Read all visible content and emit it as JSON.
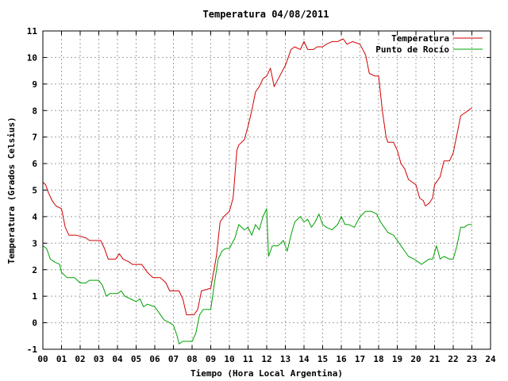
{
  "chart_data": {
    "type": "line",
    "title": "Temperatura 04/08/2011",
    "xlabel": "Tiempo (Hora Local Argentina)",
    "ylabel": "Temperatura (Grados Celsius)",
    "xlim": [
      0,
      24
    ],
    "ylim": [
      -1,
      11
    ],
    "x_ticks": [
      "00",
      "01",
      "02",
      "03",
      "04",
      "05",
      "06",
      "07",
      "08",
      "09",
      "10",
      "11",
      "12",
      "13",
      "14",
      "15",
      "16",
      "17",
      "18",
      "19",
      "20",
      "21",
      "22",
      "23",
      "24"
    ],
    "y_ticks": [
      "-1",
      "0",
      "1",
      "2",
      "3",
      "4",
      "5",
      "6",
      "7",
      "8",
      "9",
      "10",
      "11"
    ],
    "grid": true,
    "legend_position": "top-right",
    "series": [
      {
        "name": "Temperatura",
        "color": "#d00000",
        "points": [
          [
            0,
            5.3
          ],
          [
            0.15,
            5.2
          ],
          [
            0.3,
            4.9
          ],
          [
            0.5,
            4.6
          ],
          [
            0.7,
            4.4
          ],
          [
            1.0,
            4.3
          ],
          [
            1.2,
            3.6
          ],
          [
            1.4,
            3.3
          ],
          [
            1.8,
            3.3
          ],
          [
            2.3,
            3.2
          ],
          [
            2.5,
            3.1
          ],
          [
            3.1,
            3.1
          ],
          [
            3.3,
            2.8
          ],
          [
            3.5,
            2.4
          ],
          [
            3.9,
            2.4
          ],
          [
            4.1,
            2.6
          ],
          [
            4.3,
            2.4
          ],
          [
            4.6,
            2.3
          ],
          [
            4.8,
            2.2
          ],
          [
            5.3,
            2.2
          ],
          [
            5.5,
            2.0
          ],
          [
            5.6,
            1.9
          ],
          [
            5.9,
            1.7
          ],
          [
            6.3,
            1.7
          ],
          [
            6.6,
            1.5
          ],
          [
            6.8,
            1.2
          ],
          [
            7.3,
            1.2
          ],
          [
            7.5,
            0.9
          ],
          [
            7.7,
            0.3
          ],
          [
            8.1,
            0.3
          ],
          [
            8.3,
            0.5
          ],
          [
            8.5,
            1.2
          ],
          [
            9.0,
            1.3
          ],
          [
            9.3,
            2.5
          ],
          [
            9.5,
            3.8
          ],
          [
            9.7,
            4.0
          ],
          [
            10.0,
            4.2
          ],
          [
            10.2,
            4.7
          ],
          [
            10.4,
            6.5
          ],
          [
            10.5,
            6.7
          ],
          [
            10.8,
            6.9
          ],
          [
            11.0,
            7.4
          ],
          [
            11.2,
            8.0
          ],
          [
            11.4,
            8.7
          ],
          [
            11.6,
            8.9
          ],
          [
            11.8,
            9.2
          ],
          [
            12.0,
            9.3
          ],
          [
            12.2,
            9.6
          ],
          [
            12.4,
            8.9
          ],
          [
            12.7,
            9.3
          ],
          [
            13.0,
            9.7
          ],
          [
            13.3,
            10.3
          ],
          [
            13.5,
            10.4
          ],
          [
            13.8,
            10.3
          ],
          [
            14.0,
            10.6
          ],
          [
            14.2,
            10.3
          ],
          [
            14.5,
            10.3
          ],
          [
            14.7,
            10.4
          ],
          [
            15.0,
            10.4
          ],
          [
            15.2,
            10.5
          ],
          [
            15.5,
            10.6
          ],
          [
            15.8,
            10.6
          ],
          [
            16.1,
            10.7
          ],
          [
            16.3,
            10.5
          ],
          [
            16.6,
            10.6
          ],
          [
            17.0,
            10.5
          ],
          [
            17.3,
            10.1
          ],
          [
            17.5,
            9.4
          ],
          [
            17.8,
            9.3
          ],
          [
            18.0,
            9.3
          ],
          [
            18.2,
            8.0
          ],
          [
            18.4,
            7.0
          ],
          [
            18.5,
            6.8
          ],
          [
            18.8,
            6.8
          ],
          [
            19.0,
            6.5
          ],
          [
            19.2,
            6.0
          ],
          [
            19.4,
            5.8
          ],
          [
            19.6,
            5.4
          ],
          [
            19.8,
            5.3
          ],
          [
            20.0,
            5.2
          ],
          [
            20.2,
            4.7
          ],
          [
            20.4,
            4.6
          ],
          [
            20.5,
            4.4
          ],
          [
            20.7,
            4.5
          ],
          [
            20.9,
            4.7
          ],
          [
            21.0,
            5.2
          ],
          [
            21.3,
            5.5
          ],
          [
            21.5,
            6.1
          ],
          [
            21.8,
            6.1
          ],
          [
            22.0,
            6.4
          ],
          [
            22.2,
            7.1
          ],
          [
            22.4,
            7.8
          ],
          [
            22.6,
            7.9
          ],
          [
            22.8,
            8.0
          ],
          [
            23.0,
            8.1
          ]
        ]
      },
      {
        "name": "Punto de Rocío",
        "color": "#00a000",
        "points": [
          [
            0,
            2.9
          ],
          [
            0.2,
            2.8
          ],
          [
            0.4,
            2.4
          ],
          [
            0.6,
            2.3
          ],
          [
            0.9,
            2.2
          ],
          [
            1.0,
            1.9
          ],
          [
            1.3,
            1.7
          ],
          [
            1.7,
            1.7
          ],
          [
            2.0,
            1.5
          ],
          [
            2.3,
            1.5
          ],
          [
            2.5,
            1.6
          ],
          [
            3.0,
            1.6
          ],
          [
            3.2,
            1.4
          ],
          [
            3.4,
            1.0
          ],
          [
            3.6,
            1.1
          ],
          [
            4.0,
            1.1
          ],
          [
            4.2,
            1.2
          ],
          [
            4.4,
            1.0
          ],
          [
            4.7,
            0.9
          ],
          [
            5.0,
            0.8
          ],
          [
            5.2,
            0.9
          ],
          [
            5.4,
            0.6
          ],
          [
            5.6,
            0.7
          ],
          [
            6.0,
            0.6
          ],
          [
            6.3,
            0.3
          ],
          [
            6.5,
            0.1
          ],
          [
            6.8,
            0.0
          ],
          [
            7.0,
            -0.1
          ],
          [
            7.2,
            -0.5
          ],
          [
            7.3,
            -0.8
          ],
          [
            7.5,
            -0.7
          ],
          [
            8.0,
            -0.7
          ],
          [
            8.2,
            -0.4
          ],
          [
            8.4,
            0.3
          ],
          [
            8.6,
            0.5
          ],
          [
            9.0,
            0.5
          ],
          [
            9.2,
            1.5
          ],
          [
            9.4,
            2.4
          ],
          [
            9.6,
            2.7
          ],
          [
            9.8,
            2.8
          ],
          [
            10.0,
            2.8
          ],
          [
            10.3,
            3.2
          ],
          [
            10.5,
            3.7
          ],
          [
            10.8,
            3.5
          ],
          [
            11.0,
            3.6
          ],
          [
            11.2,
            3.3
          ],
          [
            11.4,
            3.7
          ],
          [
            11.6,
            3.5
          ],
          [
            11.8,
            4.0
          ],
          [
            12.0,
            4.3
          ],
          [
            12.1,
            2.5
          ],
          [
            12.3,
            2.9
          ],
          [
            12.6,
            2.9
          ],
          [
            12.9,
            3.1
          ],
          [
            13.1,
            2.7
          ],
          [
            13.3,
            3.3
          ],
          [
            13.5,
            3.8
          ],
          [
            13.8,
            4.0
          ],
          [
            14.0,
            3.8
          ],
          [
            14.2,
            3.9
          ],
          [
            14.4,
            3.6
          ],
          [
            14.6,
            3.8
          ],
          [
            14.8,
            4.1
          ],
          [
            15.0,
            3.7
          ],
          [
            15.2,
            3.6
          ],
          [
            15.5,
            3.5
          ],
          [
            15.8,
            3.7
          ],
          [
            16.0,
            4.0
          ],
          [
            16.2,
            3.7
          ],
          [
            16.4,
            3.7
          ],
          [
            16.7,
            3.6
          ],
          [
            17.0,
            4.0
          ],
          [
            17.3,
            4.2
          ],
          [
            17.6,
            4.2
          ],
          [
            17.9,
            4.1
          ],
          [
            18.1,
            3.8
          ],
          [
            18.3,
            3.6
          ],
          [
            18.5,
            3.4
          ],
          [
            18.8,
            3.3
          ],
          [
            19.0,
            3.1
          ],
          [
            19.2,
            2.9
          ],
          [
            19.4,
            2.7
          ],
          [
            19.6,
            2.5
          ],
          [
            19.9,
            2.4
          ],
          [
            20.1,
            2.3
          ],
          [
            20.3,
            2.2
          ],
          [
            20.5,
            2.3
          ],
          [
            20.7,
            2.4
          ],
          [
            20.9,
            2.4
          ],
          [
            21.1,
            2.9
          ],
          [
            21.3,
            2.4
          ],
          [
            21.5,
            2.5
          ],
          [
            21.8,
            2.4
          ],
          [
            22.0,
            2.4
          ],
          [
            22.2,
            2.9
          ],
          [
            22.4,
            3.6
          ],
          [
            22.6,
            3.6
          ],
          [
            22.8,
            3.7
          ],
          [
            23.0,
            3.7
          ]
        ]
      }
    ]
  }
}
